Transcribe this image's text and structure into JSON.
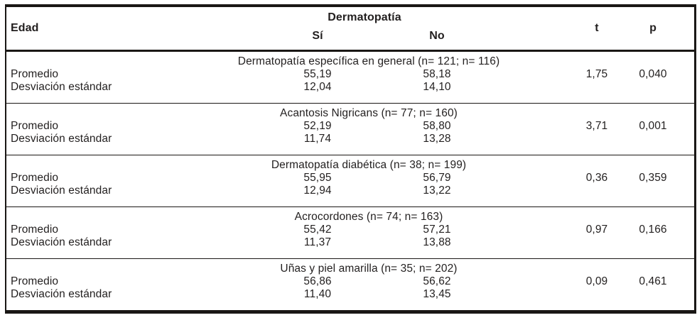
{
  "table": {
    "header": {
      "col_edad": "Edad",
      "group_dermatopatia": "Dermatopatía",
      "col_si": "Sí",
      "col_no": "No",
      "col_t": "t",
      "col_p": "p"
    },
    "row_labels": {
      "mean": "Promedio",
      "sd": "Desviación estándar"
    },
    "sections": [
      {
        "title": "Dermatopatía específica en general (n= 121; n= 116)",
        "mean_si": "55,19",
        "mean_no": "58,18",
        "sd_si": "12,04",
        "sd_no": "14,10",
        "t": "1,75",
        "p": "0,040"
      },
      {
        "title": "Acantosis Nigricans (n= 77; n= 160)",
        "mean_si": "52,19",
        "mean_no": "58,80",
        "sd_si": "11,74",
        "sd_no": "13,28",
        "t": "3,71",
        "p": "0,001"
      },
      {
        "title": "Dermatopatía diabética (n= 38; n= 199)",
        "mean_si": "55,95",
        "mean_no": "56,79",
        "sd_si": "12,94",
        "sd_no": "13,22",
        "t": "0,36",
        "p": "0,359"
      },
      {
        "title": "Acrocordones (n= 74; n= 163)",
        "mean_si": "55,42",
        "mean_no": "57,21",
        "sd_si": "11,37",
        "sd_no": "13,88",
        "t": "0,97",
        "p": "0,166"
      },
      {
        "title": "Uñas y piel amarilla (n= 35; n= 202)",
        "mean_si": "56,86",
        "mean_no": "56,62",
        "sd_si": "11,40",
        "sd_no": "13,45",
        "t": "0,09",
        "p": "0,461"
      }
    ],
    "colors": {
      "text": "#221f1f",
      "border": "#1a1715",
      "background": "#ffffff"
    }
  }
}
